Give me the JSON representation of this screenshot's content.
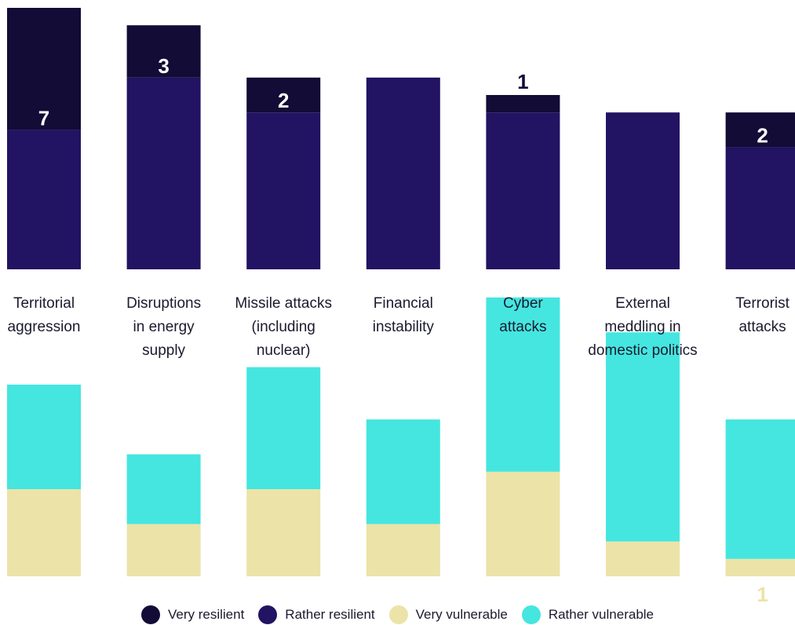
{
  "chart_data": {
    "type": "bar",
    "categories": [
      "Territorial aggression",
      "Disruptions in energy supply",
      "Missile attacks (including nuclear)",
      "Financial instability",
      "Cyber attacks",
      "External meddling in domestic politics",
      "Terrorist attacks"
    ],
    "category_lines": [
      [
        "Territorial",
        "aggression"
      ],
      [
        "Disruptions",
        "in energy",
        "supply"
      ],
      [
        "Missile attacks",
        "(including",
        "nuclear)"
      ],
      [
        "Financial",
        "instability"
      ],
      [
        "Cyber",
        "attacks"
      ],
      [
        "External",
        "meddling in",
        "domestic politics"
      ],
      [
        "Terrorist",
        "attacks"
      ]
    ],
    "resilient": [
      {
        "name": "Very resilient",
        "color": "#120c36",
        "values": [
          7,
          3,
          2,
          0,
          1,
          0,
          2
        ],
        "labels": [
          "7",
          "3",
          "2",
          "",
          "1",
          "",
          "2"
        ]
      },
      {
        "name": "Rather resilient",
        "color": "#221363",
        "values": [
          8,
          11,
          9,
          11,
          9,
          9,
          7
        ],
        "labels": [
          "",
          "",
          "",
          "",
          "",
          "",
          ""
        ]
      }
    ],
    "vulnerable": [
      {
        "name": "Very vulnerable",
        "color": "#ece3a8",
        "values": [
          5,
          3,
          5,
          3,
          6,
          2,
          1
        ],
        "labels": [
          "",
          "",
          "",
          "",
          "",
          "",
          "1"
        ]
      },
      {
        "name": "Rather vulnerable",
        "color": "#45e6e0",
        "values": [
          6,
          4,
          7,
          6,
          10,
          12,
          8
        ],
        "labels": [
          "",
          "",
          "",
          "",
          "",
          "",
          ""
        ]
      }
    ],
    "legend": [
      {
        "name": "Very resilient",
        "color": "#120c36"
      },
      {
        "name": "Rather resilient",
        "color": "#221363"
      },
      {
        "name": "Very vulnerable",
        "color": "#ece3a8"
      },
      {
        "name": "Rather vulnerable",
        "color": "#45e6e0"
      }
    ]
  }
}
